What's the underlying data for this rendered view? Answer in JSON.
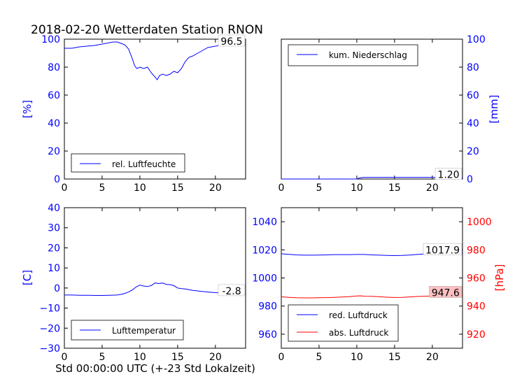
{
  "figure": {
    "title": "2018-02-20 Wetterdaten Station RNON",
    "xlabel": "Std 00:00:00 UTC (+-23 Std Lokalzeit)"
  },
  "colors": {
    "blue": "#0000ff",
    "red": "#ff0000",
    "label_bg_red": "#ffc0c0"
  },
  "chart_data": [
    {
      "type": "line",
      "title": "",
      "xlabel": "",
      "ylabel": "[%]",
      "xlim": [
        0,
        24
      ],
      "ylim": [
        0,
        100
      ],
      "xticks": [
        "0",
        "5",
        "10",
        "15",
        "20"
      ],
      "yticks": [
        "0",
        "20",
        "40",
        "60",
        "80",
        "100"
      ],
      "grid": false,
      "legend_position": "lower-left",
      "series": [
        {
          "name": "rel. Luftfeuchte",
          "color": "#0000ff",
          "x": [
            0,
            1,
            2,
            3,
            4,
            5,
            6,
            6.5,
            7,
            7.5,
            8,
            8.5,
            9,
            9.3,
            9.6,
            10,
            10.5,
            11,
            11.5,
            12,
            12.3,
            12.6,
            13,
            13.5,
            14,
            14.5,
            15,
            15.5,
            16,
            16.5,
            17,
            18,
            19,
            20,
            21,
            22,
            23,
            24
          ],
          "y": [
            93.5,
            93.5,
            94.5,
            95,
            95.5,
            96.5,
            97.5,
            98,
            98,
            97,
            96,
            93,
            86,
            81,
            79,
            80,
            79,
            80,
            76,
            73,
            71,
            74,
            75,
            74,
            75,
            77,
            76,
            79,
            84,
            87,
            88,
            91,
            94,
            95,
            96,
            96.5,
            96.5,
            96.5
          ]
        }
      ],
      "last_value_label": "96.5"
    },
    {
      "type": "line",
      "title": "",
      "xlabel": "",
      "ylabel": "[mm]",
      "xlim": [
        0,
        24
      ],
      "ylim": [
        0,
        100
      ],
      "xticks": [
        "0",
        "5",
        "10",
        "15",
        "20"
      ],
      "yticks": [
        "0",
        "20",
        "40",
        "60",
        "80",
        "100"
      ],
      "grid": false,
      "legend_position": "upper-left",
      "series": [
        {
          "name": "kum. Niederschlag",
          "color": "#0000ff",
          "x": [
            0,
            10,
            10.4,
            11,
            24
          ],
          "y": [
            0,
            0,
            0.9,
            1.2,
            1.2
          ]
        }
      ],
      "last_value_label": "1.20"
    },
    {
      "type": "line",
      "title": "",
      "xlabel": "",
      "ylabel": "[C]",
      "xlim": [
        0,
        24
      ],
      "ylim": [
        -30,
        40
      ],
      "xticks": [
        "0",
        "5",
        "10",
        "15",
        "20"
      ],
      "yticks": [
        "−30",
        "−20",
        "−10",
        "0",
        "10",
        "20",
        "30",
        "40"
      ],
      "grid": false,
      "legend_position": "lower-left",
      "series": [
        {
          "name": "Lufttemperatur",
          "color": "#0000ff",
          "x": [
            0,
            1,
            2,
            3,
            4,
            5,
            6,
            7,
            7.5,
            8,
            8.5,
            9,
            9.5,
            10,
            10.5,
            11,
            11.5,
            12,
            12.5,
            13,
            13.5,
            14,
            14.5,
            15,
            15.5,
            16,
            17,
            18,
            19,
            20,
            21,
            22,
            23,
            24
          ],
          "y": [
            -3.5,
            -3.5,
            -3.6,
            -3.6,
            -3.7,
            -3.7,
            -3.6,
            -3.5,
            -3.2,
            -2.7,
            -2,
            -1,
            0.5,
            1.5,
            1,
            0.7,
            1.2,
            2.5,
            2.2,
            2.5,
            1.8,
            1.7,
            1.2,
            0,
            -0.3,
            -0.5,
            -1.2,
            -1.6,
            -2,
            -2.3,
            -2.5,
            -2.6,
            -2.7,
            -2.8
          ]
        }
      ],
      "last_value_label": "-2.8"
    },
    {
      "type": "line",
      "title": "",
      "xlabel": "",
      "ylabel": "",
      "ylabel_right": "[hPa]",
      "xlim": [
        0,
        24
      ],
      "ylim": [
        950,
        1050
      ],
      "ylim_right": [
        910,
        1010
      ],
      "xticks": [
        "0",
        "5",
        "10",
        "15",
        "20"
      ],
      "yticks": [
        "960",
        "980",
        "1000",
        "1020",
        "1040"
      ],
      "yticks_right": [
        "920",
        "940",
        "960",
        "980",
        "1000"
      ],
      "grid": false,
      "legend_position": "lower-left",
      "series": [
        {
          "name": "red. Luftdruck",
          "color": "#0000ff",
          "axis": "left",
          "x": [
            0,
            1,
            2,
            3,
            4,
            5,
            6,
            7,
            8,
            9,
            10,
            11,
            12,
            13,
            14,
            15,
            16,
            17,
            18,
            19,
            20,
            21,
            22,
            23,
            24
          ],
          "y": [
            1017.2,
            1016.8,
            1016.4,
            1016.2,
            1016.2,
            1016.3,
            1016.4,
            1016.6,
            1016.6,
            1016.6,
            1016.7,
            1016.7,
            1016.4,
            1016.2,
            1016,
            1015.9,
            1016,
            1016.3,
            1016.7,
            1017.1,
            1017.5,
            1017.7,
            1017.8,
            1017.9,
            1017.9
          ]
        },
        {
          "name": "abs. Luftdruck",
          "color": "#ff0000",
          "axis": "right",
          "x": [
            0,
            1,
            2,
            3,
            4,
            5,
            6,
            7,
            8,
            9,
            10,
            10.5,
            11,
            12,
            13,
            14,
            15,
            16,
            17,
            18,
            19,
            20,
            21,
            22,
            23,
            24
          ],
          "y": [
            946.6,
            946.2,
            945.9,
            945.8,
            945.8,
            945.9,
            946,
            946.2,
            946.4,
            946.7,
            947.2,
            947.3,
            947,
            946.9,
            946.6,
            946.3,
            946.1,
            946.2,
            946.5,
            946.8,
            947,
            947.2,
            947.4,
            947.5,
            947.6,
            947.6
          ]
        }
      ],
      "last_value_label": "1017.9",
      "last_value_label_right": "947.6"
    }
  ]
}
